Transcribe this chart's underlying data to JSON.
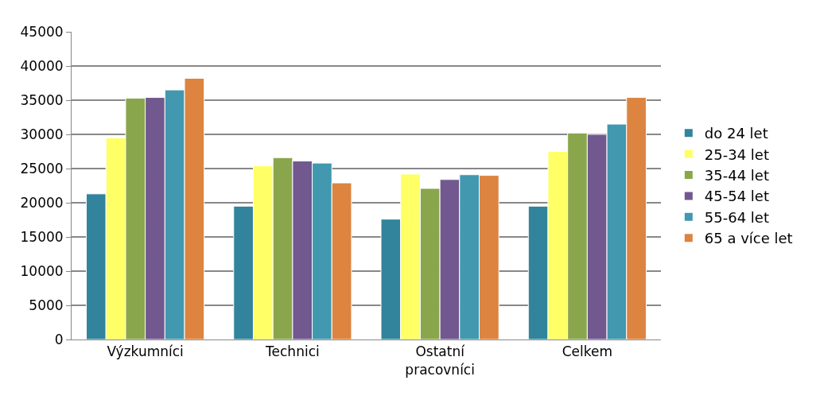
{
  "chart_data": {
    "type": "bar",
    "categories": [
      "Výzkumníci",
      "Technici",
      "Ostatní pracovníci",
      "Celkem"
    ],
    "series": [
      {
        "name": "do 24 let",
        "color": "#31849b",
        "values": [
          21300,
          19500,
          17600,
          19500
        ]
      },
      {
        "name": "25-34 let",
        "color": "#ffff66",
        "values": [
          29500,
          25400,
          24200,
          27500
        ]
      },
      {
        "name": "35-44 let",
        "color": "#8aa64d",
        "values": [
          35300,
          26600,
          22100,
          30200
        ]
      },
      {
        "name": "45-54 let",
        "color": "#71588f",
        "values": [
          35400,
          26100,
          23400,
          30000
        ]
      },
      {
        "name": "55-64 let",
        "color": "#4198af",
        "values": [
          36500,
          25800,
          24100,
          31500
        ]
      },
      {
        "name": "65 a více let",
        "color": "#dc8440",
        "values": [
          38200,
          22900,
          24000,
          35400
        ]
      }
    ],
    "ylim": [
      0,
      45000
    ],
    "yticks": [
      0,
      5000,
      10000,
      15000,
      20000,
      25000,
      30000,
      35000,
      40000,
      45000
    ],
    "grid": "y",
    "legend": "right"
  }
}
